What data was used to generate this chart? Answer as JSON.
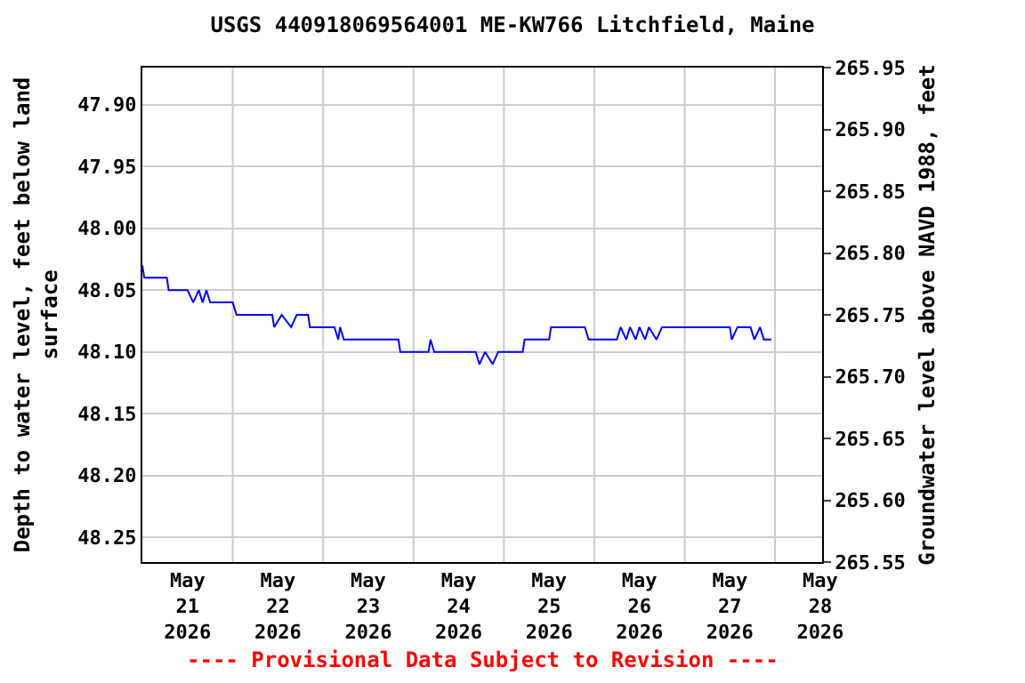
{
  "chart_data": {
    "type": "line",
    "title": "USGS 440918069564001 ME-KW766 Litchfield, Maine",
    "ylabel": "Depth to water level, feet below land\nsurface",
    "y2label": "Groundwater level above NAVD 1988, feet",
    "annotations": [
      "---- Provisional Data Subject to Revision ----"
    ],
    "x": [
      "2026-05-21T00:00",
      "2026-05-21T00:30",
      "2026-05-21T06:30",
      "2026-05-21T07:00",
      "2026-05-21T12:00",
      "2026-05-21T13:30",
      "2026-05-21T15:00",
      "2026-05-21T16:00",
      "2026-05-21T17:00",
      "2026-05-21T18:00",
      "2026-05-22T00:00",
      "2026-05-22T01:00",
      "2026-05-22T10:30",
      "2026-05-22T11:00",
      "2026-05-22T13:00",
      "2026-05-22T15:30",
      "2026-05-22T17:00",
      "2026-05-22T20:00",
      "2026-05-22T20:30",
      "2026-05-23T03:00",
      "2026-05-23T04:00",
      "2026-05-23T04:30",
      "2026-05-23T05:30",
      "2026-05-23T20:00",
      "2026-05-23T20:30",
      "2026-05-24T04:00",
      "2026-05-24T04:30",
      "2026-05-24T05:30",
      "2026-05-24T16:30",
      "2026-05-24T17:30",
      "2026-05-24T19:00",
      "2026-05-24T21:00",
      "2026-05-24T22:30",
      "2026-05-25T05:00",
      "2026-05-25T05:30",
      "2026-05-25T12:00",
      "2026-05-25T12:30",
      "2026-05-25T21:30",
      "2026-05-25T22:30",
      "2026-05-26T06:00",
      "2026-05-26T07:00",
      "2026-05-26T08:30",
      "2026-05-26T09:30",
      "2026-05-26T11:00",
      "2026-05-26T12:00",
      "2026-05-26T13:30",
      "2026-05-26T14:30",
      "2026-05-26T16:30",
      "2026-05-26T18:00",
      "2026-05-27T12:00",
      "2026-05-27T12:30",
      "2026-05-27T14:00",
      "2026-05-27T17:30",
      "2026-05-27T18:30",
      "2026-05-27T20:00",
      "2026-05-27T21:00",
      "2026-05-27T23:00"
    ],
    "series": [
      {
        "color": "#0000ff",
        "values": [
          48.03,
          48.04,
          48.04,
          48.05,
          48.05,
          48.06,
          48.05,
          48.06,
          48.05,
          48.06,
          48.06,
          48.07,
          48.07,
          48.08,
          48.07,
          48.08,
          48.07,
          48.07,
          48.08,
          48.08,
          48.09,
          48.08,
          48.09,
          48.09,
          48.1,
          48.1,
          48.09,
          48.1,
          48.1,
          48.11,
          48.1,
          48.11,
          48.1,
          48.1,
          48.09,
          48.09,
          48.08,
          48.08,
          48.09,
          48.09,
          48.08,
          48.09,
          48.08,
          48.09,
          48.08,
          48.09,
          48.08,
          48.09,
          48.08,
          48.08,
          48.09,
          48.08,
          48.08,
          48.09,
          48.08,
          48.09,
          48.09
        ]
      }
    ],
    "xlim": [
      "2026-05-21T00:00",
      "2026-05-28T12:30"
    ],
    "xticks": [
      {
        "value": "2026-05-21T12:00",
        "label": "May\n21\n2026"
      },
      {
        "value": "2026-05-22T00:00",
        "label": null
      },
      {
        "value": "2026-05-22T12:00",
        "label": "May\n22\n2026"
      },
      {
        "value": "2026-05-23T00:00",
        "label": null
      },
      {
        "value": "2026-05-23T12:00",
        "label": "May\n23\n2026"
      },
      {
        "value": "2026-05-24T00:00",
        "label": null
      },
      {
        "value": "2026-05-24T12:00",
        "label": "May\n24\n2026"
      },
      {
        "value": "2026-05-25T00:00",
        "label": null
      },
      {
        "value": "2026-05-25T12:00",
        "label": "May\n25\n2026"
      },
      {
        "value": "2026-05-26T00:00",
        "label": null
      },
      {
        "value": "2026-05-26T12:00",
        "label": "May\n26\n2026"
      },
      {
        "value": "2026-05-27T00:00",
        "label": null
      },
      {
        "value": "2026-05-27T12:00",
        "label": "May\n27\n2026"
      },
      {
        "value": "2026-05-28T00:00",
        "label": null
      },
      {
        "value": "2026-05-28T12:00",
        "label": "May\n28\n2026"
      }
    ],
    "ylim": [
      48.27,
      47.87
    ],
    "yticks": [
      {
        "value": 47.9,
        "label": "47.90"
      },
      {
        "value": 47.95,
        "label": "47.95"
      },
      {
        "value": 48.0,
        "label": "48.00"
      },
      {
        "value": 48.05,
        "label": "48.05"
      },
      {
        "value": 48.1,
        "label": "48.10"
      },
      {
        "value": 48.15,
        "label": "48.15"
      },
      {
        "value": 48.2,
        "label": "48.20"
      },
      {
        "value": 48.25,
        "label": "48.25"
      }
    ],
    "y2lim": [
      265.55,
      265.95
    ],
    "y2ticks": [
      {
        "value": 265.55,
        "label": "265.55"
      },
      {
        "value": 265.6,
        "label": "265.60"
      },
      {
        "value": 265.65,
        "label": "265.65"
      },
      {
        "value": 265.7,
        "label": "265.70"
      },
      {
        "value": 265.75,
        "label": "265.75"
      },
      {
        "value": 265.8,
        "label": "265.80"
      },
      {
        "value": 265.85,
        "label": "265.85"
      },
      {
        "value": 265.9,
        "label": "265.90"
      },
      {
        "value": 265.95,
        "label": "265.95"
      }
    ],
    "grid": true,
    "marker": "none",
    "line_style": "solid"
  }
}
